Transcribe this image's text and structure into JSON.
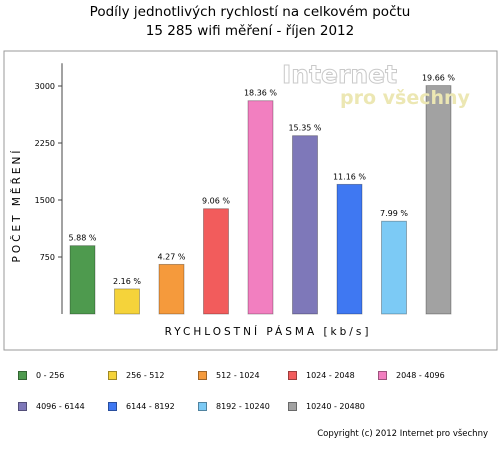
{
  "chart_data": {
    "type": "bar",
    "title": "Podíly jednotlivých rychlostí na celkovém počtu",
    "subtitle": "15 285 wifi měření - říjen 2012",
    "xlabel": "RYCHLOSTNÍ PÁSMA [kb/s]",
    "ylabel": "POČET MĚŘENÍ",
    "ylim": [
      0,
      3300
    ],
    "yticks": [
      750,
      1500,
      2250,
      3000
    ],
    "grid": false,
    "legend_position": "bottom",
    "categories": [
      "0 - 256",
      "256 - 512",
      "512 - 1024",
      "1024 - 2048",
      "2048 - 4096",
      "4096 - 6144",
      "6144 - 8192",
      "8192 - 10240",
      "10240 - 20480"
    ],
    "values": [
      899,
      330,
      653,
      1385,
      2806,
      2346,
      1706,
      1221,
      3005
    ],
    "data_labels": [
      "5.88 %",
      "2.16 %",
      "4.27 %",
      "9.06 %",
      "18.36 %",
      "15.35 %",
      "11.16 %",
      "7.99 %",
      "19.66 %"
    ],
    "colors": [
      "#4e9a4e",
      "#f5d33a",
      "#f59a3c",
      "#f25c5c",
      "#f27fc0",
      "#7e78b9",
      "#3f78f2",
      "#7ccaf5",
      "#a2a2a2"
    ]
  },
  "watermark": {
    "line1": "Internet",
    "line2": "pro všechny"
  },
  "copyright": "Copyright (c) 2012 Internet pro všechny"
}
